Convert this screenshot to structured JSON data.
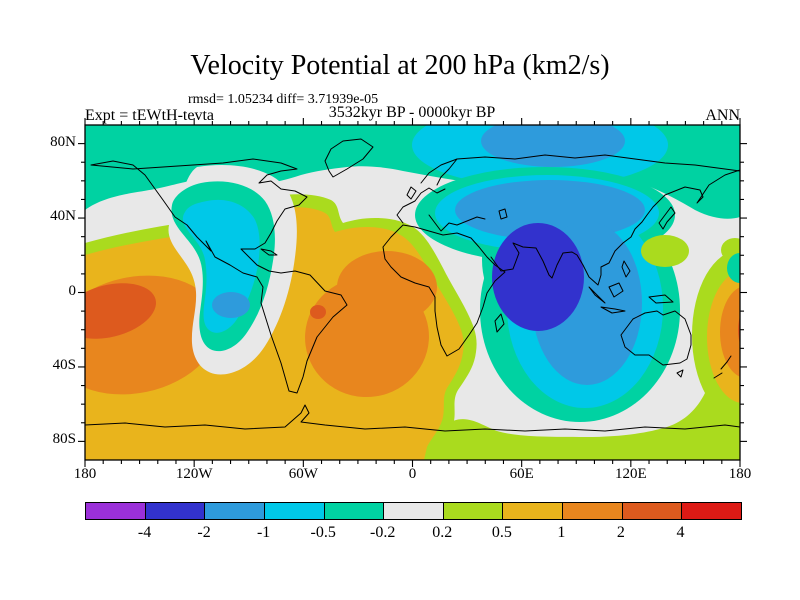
{
  "header": {
    "title": "Velocity Potential at 200 hPa (km2/s)",
    "stats_line": "rmsd= 1.05234 diff= 3.71939e-05",
    "comparison_line": "3532kyr BP - 0000kyr BP",
    "experiment_label": "Expt = tEWtH-tevta",
    "season_label": "ANN"
  },
  "chart_data": {
    "type": "heatmap",
    "subtype": "filled-contour world map, equirectangular projection",
    "title": "Velocity Potential at 200 hPa (km2/s)",
    "stats": {
      "rmsd": "1.05234",
      "diff": "3.71939e-05"
    },
    "comparison": "3532kyr BP - 0000kyr BP",
    "experiment": "tEWtH-tevta",
    "season": "ANN",
    "lon_range": [
      "180W",
      "180E"
    ],
    "lat_range": [
      "90S",
      "90N"
    ],
    "x_axis": {
      "label_ticks": [
        "180",
        "120W",
        "60W",
        "0",
        "60E",
        "120E",
        "180"
      ],
      "major_interval_deg": 60,
      "minor_interval_deg": 10
    },
    "y_axis": {
      "label_ticks": [
        "80N",
        "40N",
        "0",
        "40S",
        "80S"
      ],
      "major_interval_deg": 40,
      "minor_interval_deg": 10
    },
    "colorbar": {
      "boundary_labels": [
        "-4",
        "-2",
        "-1",
        "-0.5",
        "-0.2",
        "0.2",
        "0.5",
        "1",
        "2",
        "4"
      ],
      "colors": [
        "#9B30D9",
        "#3232CD",
        "#2E9BDC",
        "#00C8E8",
        "#00D2A2",
        "#E8E8E8",
        "#AADB1E",
        "#E9B41C",
        "#E8861E",
        "#DD5A1E",
        "#DD1A15"
      ],
      "orientation": "horizontal"
    },
    "features": [
      {
        "name": "negative-center",
        "location": "South Asia / North Indian Ocean (~70E, 10N)",
        "band": "-4 to -2"
      },
      {
        "name": "secondary-negative-center",
        "location": "East Pacific (~100W, 5S)",
        "band": "-2 to -1"
      },
      {
        "name": "positive-center",
        "location": "Central/West Pacific at map edge (~170W, 15S)",
        "band": "2 to 4"
      },
      {
        "name": "positive-center",
        "location": "South America / South Atlantic (~40W, 15S)",
        "band": "1 to 2 with small 2-4 core"
      },
      {
        "name": "neutral-band",
        "location": "North America, North Atlantic, Southern Ocean ring",
        "band": "-0.2 to 0.2"
      },
      {
        "name": "arctic-band",
        "location": "high northern latitudes",
        "band": "-1 to -0.2"
      }
    ]
  }
}
